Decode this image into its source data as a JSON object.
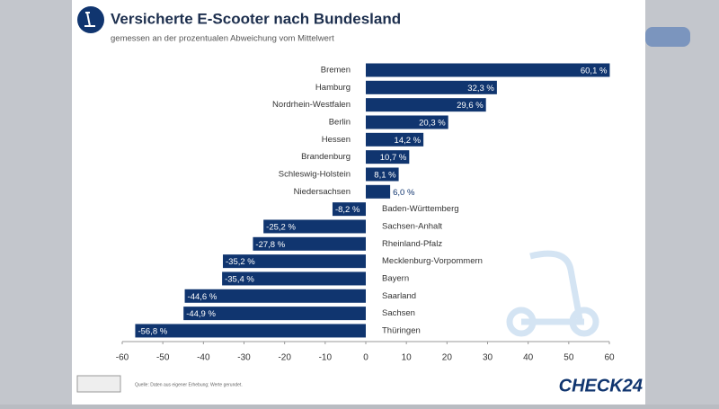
{
  "chart_data": {
    "type": "bar",
    "orientation": "horizontal",
    "title": "Versicherte E-Scooter nach Bundesland",
    "subtitle": "gemessen an der prozentualen Abweichung vom Mittelwert",
    "categories": [
      "Bremen",
      "Hamburg",
      "Nordrhein-Westfalen",
      "Berlin",
      "Hessen",
      "Brandenburg",
      "Schleswig-Holstein",
      "Niedersachsen",
      "Baden-Württemberg",
      "Sachsen-Anhalt",
      "Rheinland-Pfalz",
      "Mecklenburg-Vorpommern",
      "Bayern",
      "Saarland",
      "Sachsen",
      "Thüringen"
    ],
    "values": [
      60.1,
      32.3,
      29.6,
      20.3,
      14.2,
      10.7,
      8.1,
      6.0,
      -8.2,
      -25.2,
      -27.8,
      -35.2,
      -35.4,
      -44.6,
      -44.9,
      -56.8
    ],
    "value_labels": [
      "60,1 %",
      "32,3 %",
      "29,6 %",
      "20,3 %",
      "14,2 %",
      "10,7 %",
      "8,1 %",
      "6,0 %",
      "-8,2 %",
      "-25,2 %",
      "-27,8 %",
      "-35,2 %",
      "-35,4 %",
      "-44,6 %",
      "-44,9 %",
      "-56,8 %"
    ],
    "color": "#10356f",
    "xlim": [
      -60,
      60
    ],
    "xticks": [
      -60,
      -50,
      -40,
      -30,
      -20,
      -10,
      0,
      10,
      20,
      30,
      40,
      50,
      60
    ],
    "source": "Quelle: Daten aus eigener Erhebung; Werte gerundet.",
    "brand": "CHECK24"
  }
}
